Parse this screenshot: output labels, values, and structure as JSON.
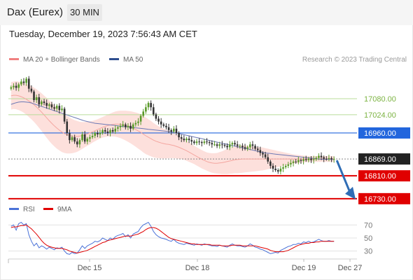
{
  "header": {
    "title": "Dax (Eurex)",
    "timeframe": "30 MIN"
  },
  "timestamp": "Tuesday, December 19, 2023 7:56:43 AM CET",
  "credit": "Research © 2023 Trading Central",
  "legend_main": [
    {
      "label": "MA 20 + Bollinger Bands",
      "color": "#f08080"
    },
    {
      "label": "MA 50",
      "color": "#2e4e8f"
    }
  ],
  "legend_rsi": [
    {
      "label": "RSI",
      "color": "#4a72d8"
    },
    {
      "label": "9MA",
      "color": "#e00000"
    }
  ],
  "colors": {
    "resistance": "#2266dd",
    "support": "#e00000",
    "target": "#7cb342",
    "bull": "#5a9a2a",
    "bear": "#333333",
    "arrow": "#2f6db5"
  },
  "chart_data": [
    {
      "type": "candlestick",
      "ylim": [
        16710,
        17200
      ],
      "x_ticks": [
        "Dec 15",
        "Dec 18",
        "Dec 19",
        "Dec 27"
      ],
      "levels": [
        {
          "value": 17080,
          "label": "17080.00",
          "kind": "target"
        },
        {
          "value": 17024,
          "label": "17024.00",
          "kind": "target"
        },
        {
          "value": 16960,
          "label": "16960.00",
          "kind": "resistance"
        },
        {
          "value": 16869,
          "label": "16869.00",
          "kind": "current"
        },
        {
          "value": 16810,
          "label": "16810.00",
          "kind": "support"
        },
        {
          "value": 16730,
          "label": "16730.00",
          "kind": "support"
        }
      ],
      "close": [
        17120,
        17125,
        17118,
        17130,
        17140,
        17135,
        17150,
        17115,
        17105,
        17075,
        17085,
        17060,
        17070,
        17065,
        17055,
        17060,
        17050,
        17045,
        17055,
        17040,
        17045,
        17000,
        16960,
        16935,
        16945,
        16930,
        16920,
        16935,
        16955,
        16930,
        16940,
        16945,
        16950,
        16960,
        16955,
        16960,
        16970,
        16965,
        16960,
        16970,
        16965,
        16975,
        16980,
        16985,
        16990,
        16980,
        16985,
        16975,
        16990,
        16995,
        17000,
        17020,
        17035,
        17050,
        17065,
        17050,
        17025,
        17010,
        17000,
        16990,
        16985,
        16980,
        16970,
        16965,
        16975,
        16960,
        16945,
        16940,
        16935,
        16940,
        16935,
        16930,
        16925,
        16930,
        16928,
        16925,
        16930,
        16928,
        16925,
        16920,
        16920,
        16915,
        16920,
        16918,
        16915,
        16910,
        16920,
        16925,
        16920,
        16915,
        16915,
        16910,
        16905,
        16910,
        16920,
        16915,
        16905,
        16900,
        16890,
        16885,
        16875,
        16860,
        16845,
        16835,
        16830,
        16825,
        16835,
        16840,
        16845,
        16850,
        16855,
        16860,
        16858,
        16865,
        16862,
        16868,
        16865,
        16870,
        16865,
        16868,
        16873,
        16880,
        16875,
        16870,
        16869,
        16872,
        16868,
        16869
      ],
      "ma20": [
        17090,
        17092,
        17092,
        17090,
        17087,
        17083,
        17078,
        17072,
        17066,
        17059,
        17051,
        17042,
        17033,
        17023,
        17013,
        17003,
        16994,
        16985,
        16977,
        16970,
        16963,
        16958,
        16954,
        16951,
        16949,
        16948,
        16948,
        16949,
        16951,
        16954,
        16957,
        16960,
        16964,
        16968,
        16972,
        16976,
        16980,
        16983,
        16986,
        16988,
        16990,
        16991,
        16991,
        16990,
        16988,
        16986,
        16983,
        16980,
        16976,
        16972,
        16967,
        16962,
        16956,
        16950,
        16945,
        16940,
        16935,
        16931,
        16928,
        16925,
        16923,
        16921,
        16920,
        16918,
        16916,
        16913,
        16910,
        16906,
        16902,
        16898,
        16893,
        16888,
        16883,
        16878,
        16873,
        16868,
        16864,
        16860,
        16857,
        16855,
        16854,
        16854,
        16855,
        16856,
        16858,
        16860,
        16862,
        16864,
        16866,
        16867,
        16868,
        16869,
        16869,
        16869,
        16869,
        16869,
        16869,
        16869,
        16869,
        16869,
        16869,
        16869,
        16869,
        16869,
        16869,
        16869,
        16869,
        16869,
        16869,
        16869,
        16869,
        16869,
        16869,
        16869,
        16869,
        16869,
        16869,
        16869,
        16869,
        16869,
        16869,
        16869,
        16869,
        16869,
        16869,
        16869,
        16869,
        16869
      ],
      "ma50": [
        17060,
        17063,
        17066,
        17068,
        17069,
        17069,
        17068,
        17067,
        17065,
        17062,
        17059,
        17056,
        17053,
        17050,
        17047,
        17044,
        17041,
        17038,
        17035,
        17032,
        17029,
        17026,
        17023,
        17020,
        17017,
        17014,
        17011,
        17008,
        17005,
        17002,
        17000,
        16998,
        16996,
        16994,
        16993,
        16992,
        16991,
        16990,
        16989,
        16988,
        16987,
        16986,
        16985,
        16984,
        16983,
        16982,
        16981,
        16980,
        16979,
        16978,
        16977,
        16976,
        16975,
        16974,
        16973,
        16972,
        16971,
        16970,
        16969,
        16968,
        16967,
        16966,
        16965,
        16964,
        16962,
        16960,
        16958,
        16956,
        16954,
        16952,
        16950,
        16948,
        16946,
        16944,
        16942,
        16940,
        16938,
        16936,
        16934,
        16932,
        16930,
        16928,
        16926,
        16924,
        16922,
        16920,
        16918,
        16916,
        16914,
        16912,
        16910,
        16908,
        16906,
        16904,
        16902,
        16900,
        16898,
        16896,
        16894,
        16892,
        16890,
        16889,
        16888,
        16887,
        16886,
        16885,
        16884,
        16883,
        16882,
        16881,
        16880,
        16879,
        16878,
        16877,
        16876,
        16875,
        16874,
        16873,
        16872,
        16871,
        16870,
        16869,
        16868,
        16868,
        16868,
        16868,
        16867,
        16867
      ],
      "band_half_width": [
        48,
        48,
        49,
        50,
        51,
        52,
        54,
        56,
        58,
        60,
        62,
        64,
        66,
        68,
        70,
        71,
        72,
        72,
        72,
        71,
        70,
        68,
        66,
        63,
        60,
        57,
        54,
        50,
        47,
        44,
        42,
        40,
        38,
        37,
        36,
        36,
        36,
        37,
        38,
        40,
        42,
        44,
        46,
        48,
        50,
        52,
        54,
        56,
        58,
        60,
        62,
        63,
        64,
        64,
        63,
        62,
        60,
        58,
        56,
        54,
        52,
        50,
        48,
        46,
        44,
        42,
        40,
        38,
        36,
        35,
        34,
        33,
        32,
        32,
        32,
        32,
        32,
        32,
        33,
        34,
        35,
        36,
        38,
        40,
        42,
        44,
        45,
        46,
        47,
        48,
        48,
        48,
        47,
        46,
        45,
        44,
        43,
        42,
        41,
        40,
        38,
        36,
        34,
        32,
        30,
        28,
        26,
        24,
        22,
        20,
        18,
        16,
        15,
        14,
        13,
        12,
        11,
        10,
        10,
        10,
        10,
        10,
        10,
        10,
        10,
        10,
        10,
        10
      ]
    },
    {
      "type": "line",
      "name": "RSI",
      "ylim": [
        20,
        80
      ],
      "y_ticks": [
        "70",
        "50",
        "30"
      ],
      "rsi": [
        68,
        70,
        62,
        72,
        74,
        70,
        72,
        55,
        45,
        38,
        42,
        35,
        38,
        36,
        33,
        36,
        34,
        32,
        35,
        34,
        36,
        30,
        26,
        25,
        28,
        26,
        27,
        32,
        38,
        34,
        38,
        40,
        42,
        45,
        44,
        46,
        50,
        48,
        46,
        50,
        48,
        52,
        54,
        55,
        57,
        52,
        55,
        50,
        56,
        58,
        60,
        66,
        70,
        72,
        74,
        68,
        60,
        55,
        52,
        50,
        49,
        48,
        46,
        45,
        48,
        44,
        42,
        41,
        40,
        42,
        41,
        40,
        39,
        41,
        40,
        39,
        41,
        40,
        39,
        38,
        38,
        37,
        39,
        38,
        37,
        36,
        39,
        41,
        39,
        38,
        38,
        37,
        36,
        38,
        41,
        39,
        36,
        35,
        33,
        32,
        30,
        28,
        26,
        27,
        28,
        27,
        31,
        33,
        35,
        37,
        38,
        40,
        40,
        42,
        41,
        44,
        43,
        45,
        43,
        44,
        46,
        48,
        46,
        45,
        45,
        46,
        45,
        45
      ],
      "ma9": [
        66,
        67,
        67,
        68,
        69,
        69,
        70,
        67,
        64,
        60,
        56,
        51,
        46,
        42,
        39,
        37,
        36,
        35,
        34,
        34,
        34,
        33,
        32,
        30,
        29,
        28,
        27,
        28,
        29,
        30,
        31,
        33,
        35,
        37,
        39,
        41,
        43,
        44,
        46,
        47,
        48,
        49,
        50,
        51,
        52,
        53,
        53,
        53,
        54,
        55,
        56,
        58,
        60,
        63,
        65,
        66,
        66,
        65,
        63,
        60,
        57,
        54,
        51,
        49,
        48,
        47,
        46,
        45,
        44,
        43,
        42,
        41,
        41,
        40,
        40,
        40,
        40,
        40,
        40,
        39,
        39,
        39,
        39,
        38,
        38,
        38,
        38,
        39,
        39,
        39,
        39,
        38,
        38,
        38,
        38,
        38,
        38,
        37,
        36,
        35,
        34,
        33,
        31,
        30,
        29,
        29,
        29,
        29,
        30,
        31,
        33,
        35,
        37,
        39,
        40,
        41,
        42,
        42,
        43,
        43,
        44,
        44,
        45,
        45,
        45,
        45,
        45,
        45
      ]
    }
  ]
}
